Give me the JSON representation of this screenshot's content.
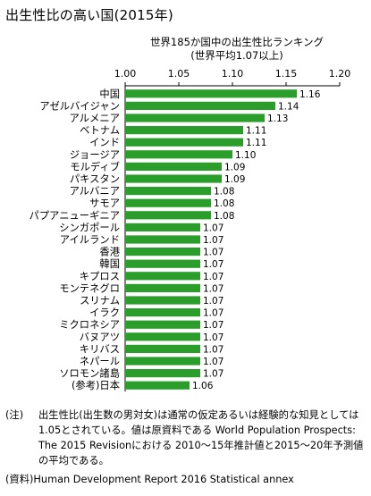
{
  "title": "出生性比の高い国(2015年)",
  "subtitle_line1": "世界185か国中の出生性比ランキング",
  "subtitle_line2": "(世界平均1.07以上)",
  "note_lead": "(注)",
  "note_body": "出生性比(出生数の男対女)は通常の仮定あるいは経験的な知見としては1.05とされている。値は原資料である World Population Prospects: The 2015 Revisionにおける 2010〜15年推計値と2015〜20年予測値の平均である。",
  "source": "(資料)Human Development Report 2016 Statistical annex",
  "chart_data": {
    "type": "bar",
    "orientation": "horizontal",
    "title": "出生性比の高い国(2015年)",
    "xlim": [
      1.0,
      1.2
    ],
    "ticks": [
      "1.00",
      "1.05",
      "1.10",
      "1.15",
      "1.20"
    ],
    "bar_color": "#2a9d2a",
    "categories": [
      "中国",
      "アゼルバイジャン",
      "アルメニア",
      "ベトナム",
      "インド",
      "ジョージア",
      "モルディブ",
      "パキスタン",
      "アルバニア",
      "サモア",
      "パプアニューギニア",
      "シンガポール",
      "アイルランド",
      "香港",
      "韓国",
      "キプロス",
      "モンテネグロ",
      "スリナム",
      "イラク",
      "ミクロネシア",
      "バヌアツ",
      "キリバス",
      "ネパール",
      "ソロモン諸島",
      "(参考)日本"
    ],
    "values": [
      1.16,
      1.14,
      1.13,
      1.11,
      1.11,
      1.1,
      1.09,
      1.09,
      1.08,
      1.08,
      1.08,
      1.07,
      1.07,
      1.07,
      1.07,
      1.07,
      1.07,
      1.07,
      1.07,
      1.07,
      1.07,
      1.07,
      1.07,
      1.07,
      1.06
    ],
    "value_labels": [
      "1.16",
      "1.14",
      "1.13",
      "1.11",
      "1.11",
      "1.10",
      "1.09",
      "1.09",
      "1.08",
      "1.08",
      "1.08",
      "1.07",
      "1.07",
      "1.07",
      "1.07",
      "1.07",
      "1.07",
      "1.07",
      "1.07",
      "1.07",
      "1.07",
      "1.07",
      "1.07",
      "1.07",
      "1.06"
    ]
  }
}
